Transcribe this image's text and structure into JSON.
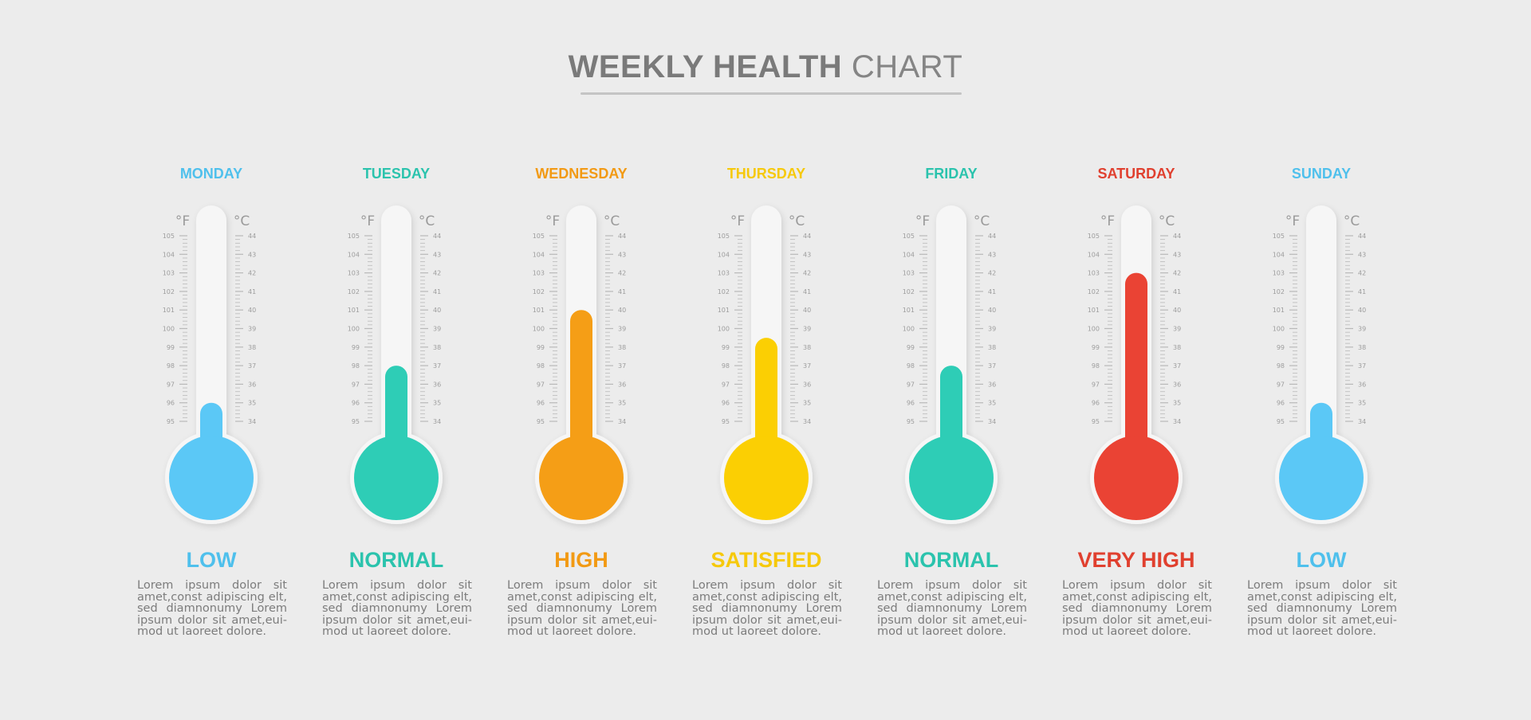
{
  "title": {
    "bold": "WEEKLY HEALTH",
    "light": "CHART"
  },
  "units": {
    "fahrenheit": "°F",
    "celsius": "°C"
  },
  "chart_data": {
    "type": "thermometer",
    "scale_f": {
      "min": 95,
      "max": 105,
      "ticks": [
        105,
        104,
        103,
        102,
        101,
        100,
        99,
        98,
        97,
        96,
        95
      ]
    },
    "scale_c": {
      "min": 34,
      "max": 44,
      "ticks": [
        44,
        43,
        42,
        41,
        40,
        39,
        38,
        37,
        36,
        35,
        34
      ]
    },
    "days": [
      {
        "day": "MONDAY",
        "status": "LOW",
        "value_f": 96,
        "color": "#5bc8f6",
        "label_color": "#4fc0ec"
      },
      {
        "day": "TUESDAY",
        "status": "NORMAL",
        "value_f": 98,
        "color": "#2ecdb6",
        "label_color": "#2bc3ad"
      },
      {
        "day": "WEDNESDAY",
        "status": "HIGH",
        "value_f": 101,
        "color": "#f59e16",
        "label_color": "#f29a14"
      },
      {
        "day": "THURSDAY",
        "status": "SATISFIED",
        "value_f": 99.5,
        "color": "#fbcf03",
        "label_color": "#f6c90b"
      },
      {
        "day": "FRIDAY",
        "status": "NORMAL",
        "value_f": 98,
        "color": "#2ecdb6",
        "label_color": "#2bc3ad"
      },
      {
        "day": "SATURDAY",
        "status": "VERY HIGH",
        "value_f": 103,
        "color": "#ea4334",
        "label_color": "#e0402f"
      },
      {
        "day": "SUNDAY",
        "status": "LOW",
        "value_f": 96,
        "color": "#5bc8f6",
        "label_color": "#4fc0ec"
      }
    ]
  },
  "description_lines": [
    "Lorem ipsum dolor sit",
    "amet,const adipiscing elt,",
    "sed diamnonumy Lorem",
    "ipsum dolor sit amet,eui-",
    "mod ut laoreet dolore."
  ]
}
